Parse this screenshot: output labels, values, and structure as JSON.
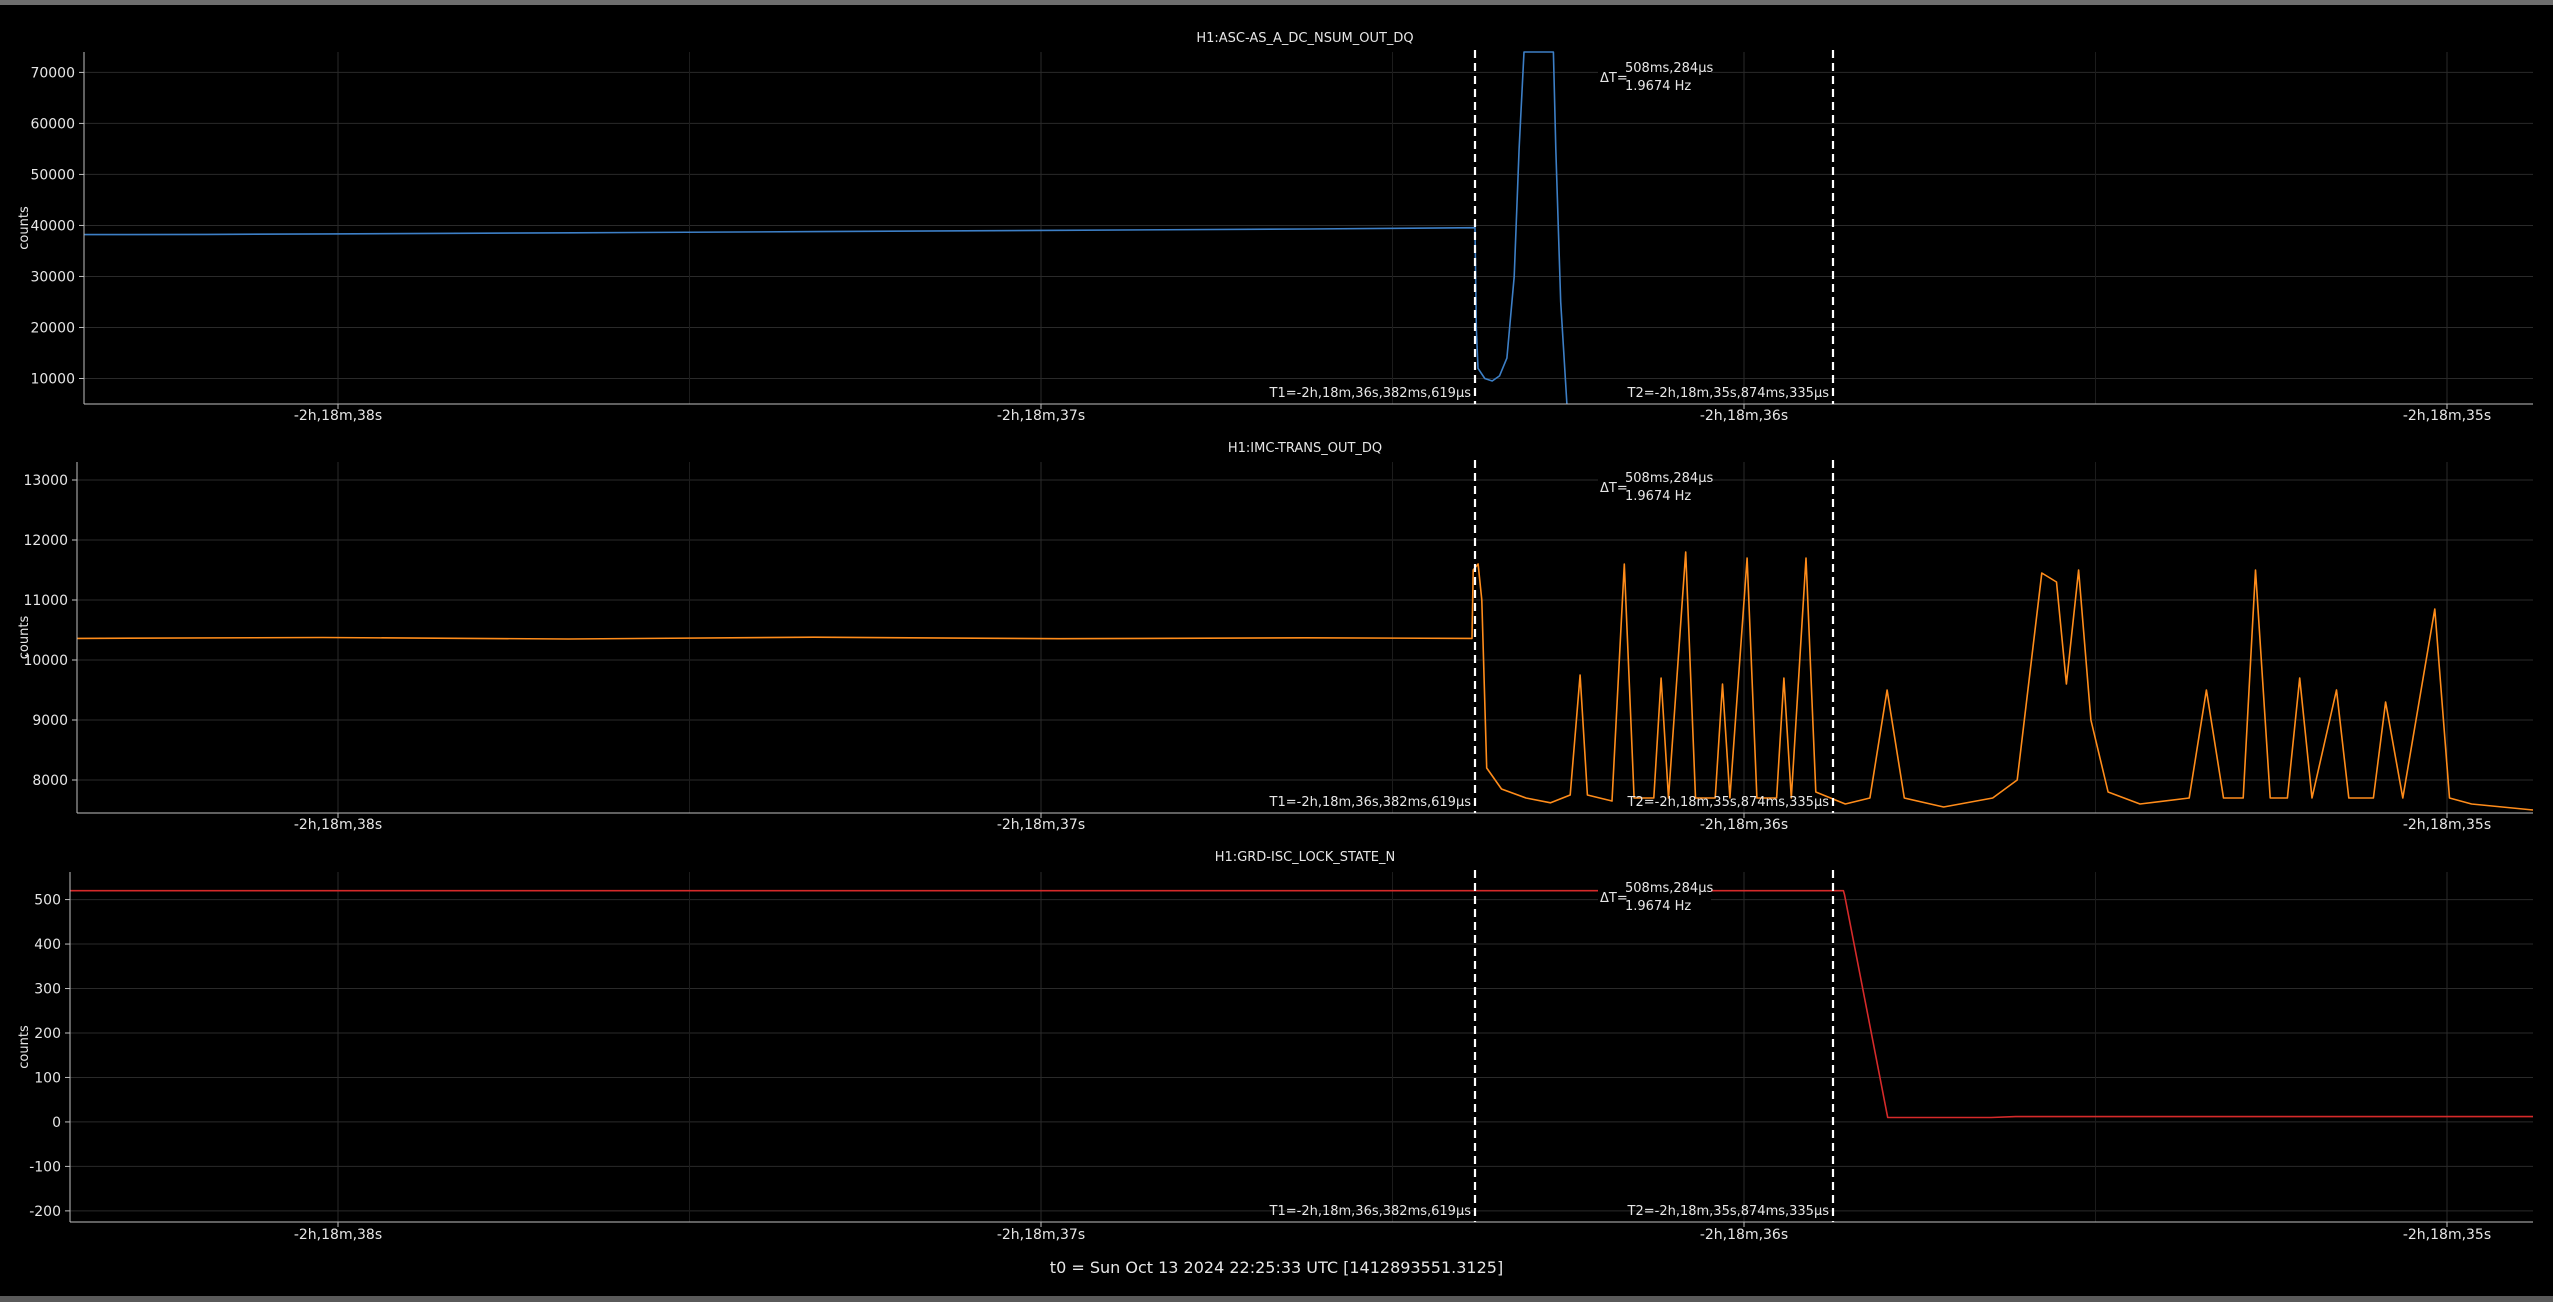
{
  "footer": "t0 = Sun Oct 13 2024 22:25:33 UTC [1412893551.3125]",
  "colors": {
    "background": "#000000",
    "axis": "#bfbfbf",
    "grid": "#2a2a2a",
    "text": "#e6e6e6",
    "cursor": "#ffffff",
    "blue": "#3d7fc6",
    "orange": "#ff8c1a",
    "red": "#d62a2a"
  },
  "cursors": {
    "t1_label": "T1=-2h,18m,36s,382ms,619μs",
    "t2_label": "T2=-2h,18m,35s,874ms,335μs",
    "delta_prefix": "ΔT=",
    "delta_time": "508ms,284μs",
    "delta_freq": "1.9674 Hz"
  },
  "chart_data": [
    {
      "type": "line",
      "title": "H1:ASC-AS_A_DC_NSUM_OUT_DQ",
      "ylabel": "counts",
      "ylim": [
        5000,
        74000
      ],
      "yticks": [
        10000,
        20000,
        30000,
        40000,
        50000,
        60000,
        70000
      ],
      "xticks": [
        "-2h,18m,38s",
        "-2h,18m,37s",
        "-2h,18m,36s",
        "-2h,18m,35s"
      ],
      "grid": true,
      "series": [
        {
          "color": "#3d7fc6",
          "points": [
            [
              0,
              38200
            ],
            [
              0.05,
              38250
            ],
            [
              0.1,
              38350
            ],
            [
              0.2,
              38550
            ],
            [
              0.3,
              38800
            ],
            [
              0.4,
              39050
            ],
            [
              0.5,
              39300
            ],
            [
              0.568,
              39550
            ],
            [
              0.5685,
              20000
            ],
            [
              0.5692,
              12000
            ],
            [
              0.572,
              10000
            ],
            [
              0.575,
              9500
            ],
            [
              0.578,
              10500
            ],
            [
              0.581,
              14000
            ],
            [
              0.584,
              30000
            ],
            [
              0.586,
              55000
            ],
            [
              0.588,
              74000
            ],
            [
              0.6,
              74000
            ],
            [
              0.601,
              55000
            ],
            [
              0.603,
              25000
            ],
            [
              0.6055,
              5000
            ]
          ]
        }
      ]
    },
    {
      "type": "line",
      "title": "H1:IMC-TRANS_OUT_DQ",
      "ylabel": "counts",
      "ylim": [
        7450,
        13300
      ],
      "yticks": [
        8000,
        9000,
        10000,
        11000,
        12000,
        13000
      ],
      "xticks": [
        "-2h,18m,38s",
        "-2h,18m,37s",
        "-2h,18m,36s",
        "-2h,18m,35s"
      ],
      "grid": true,
      "series": [
        {
          "color": "#ff8c1a",
          "points": [
            [
              0,
              10360
            ],
            [
              0.1,
              10375
            ],
            [
              0.2,
              10350
            ],
            [
              0.3,
              10380
            ],
            [
              0.4,
              10355
            ],
            [
              0.5,
              10370
            ],
            [
              0.568,
              10360
            ],
            [
              0.5685,
              11500
            ],
            [
              0.5705,
              11600
            ],
            [
              0.572,
              11000
            ],
            [
              0.574,
              8200
            ],
            [
              0.58,
              7850
            ],
            [
              0.59,
              7700
            ],
            [
              0.6,
              7620
            ],
            [
              0.608,
              7750
            ],
            [
              0.612,
              9750
            ],
            [
              0.615,
              7750
            ],
            [
              0.625,
              7650
            ],
            [
              0.63,
              11600
            ],
            [
              0.634,
              7700
            ],
            [
              0.642,
              7700
            ],
            [
              0.645,
              9700
            ],
            [
              0.648,
              7700
            ],
            [
              0.655,
              11800
            ],
            [
              0.659,
              7700
            ],
            [
              0.667,
              7700
            ],
            [
              0.67,
              9600
            ],
            [
              0.673,
              7700
            ],
            [
              0.68,
              11700
            ],
            [
              0.684,
              7700
            ],
            [
              0.692,
              7700
            ],
            [
              0.695,
              9700
            ],
            [
              0.698,
              7700
            ],
            [
              0.704,
              11700
            ],
            [
              0.708,
              7800
            ],
            [
              0.72,
              7600
            ],
            [
              0.73,
              7700
            ],
            [
              0.737,
              9500
            ],
            [
              0.744,
              7700
            ],
            [
              0.76,
              7550
            ],
            [
              0.78,
              7700
            ],
            [
              0.79,
              8000
            ],
            [
              0.8,
              11450
            ],
            [
              0.806,
              11300
            ],
            [
              0.81,
              9600
            ],
            [
              0.815,
              11500
            ],
            [
              0.82,
              9000
            ],
            [
              0.827,
              7800
            ],
            [
              0.84,
              7600
            ],
            [
              0.86,
              7700
            ],
            [
              0.867,
              9500
            ],
            [
              0.874,
              7700
            ],
            [
              0.882,
              7700
            ],
            [
              0.887,
              11500
            ],
            [
              0.893,
              7700
            ],
            [
              0.9,
              7700
            ],
            [
              0.905,
              9700
            ],
            [
              0.91,
              7700
            ],
            [
              0.92,
              9500
            ],
            [
              0.925,
              7700
            ],
            [
              0.935,
              7700
            ],
            [
              0.94,
              9300
            ],
            [
              0.947,
              7700
            ],
            [
              0.96,
              10850
            ],
            [
              0.966,
              7700
            ],
            [
              0.975,
              7600
            ],
            [
              1,
              7500
            ]
          ]
        }
      ]
    },
    {
      "type": "line",
      "title": "H1:GRD-ISC_LOCK_STATE_N",
      "ylabel": "counts",
      "ylim": [
        -225,
        562
      ],
      "yticks": [
        -200,
        -100,
        0,
        100,
        200,
        300,
        400,
        500
      ],
      "xticks": [
        "-2h,18m,38s",
        "-2h,18m,37s",
        "-2h,18m,36s",
        "-2h,18m,35s"
      ],
      "grid": true,
      "series": [
        {
          "color": "#d62a2a",
          "points": [
            [
              0,
              520
            ],
            [
              0.72,
              520
            ],
            [
              0.7205,
              510
            ],
            [
              0.738,
              10
            ],
            [
              0.78,
              10
            ],
            [
              0.79,
              12
            ],
            [
              1,
              12
            ]
          ]
        }
      ]
    }
  ]
}
